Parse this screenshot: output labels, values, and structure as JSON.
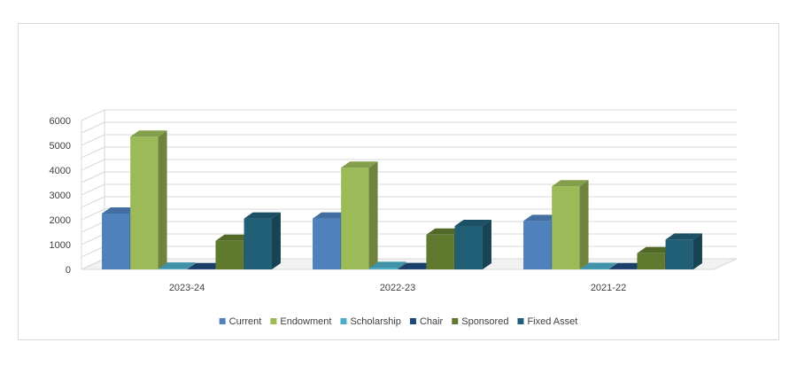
{
  "chart_data": {
    "type": "bar",
    "style": "3d-clustered-column",
    "categories": [
      "2023-24",
      "2022-23",
      "2021-22"
    ],
    "series": [
      {
        "name": "Current",
        "values": [
          2250,
          2050,
          1950
        ],
        "color": "#4f81bd"
      },
      {
        "name": "Endowment",
        "values": [
          5350,
          4100,
          3350
        ],
        "color": "#9bbb59"
      },
      {
        "name": "Scholarship",
        "values": [
          30,
          60,
          20
        ],
        "color": "#4bacc6"
      },
      {
        "name": "Chair",
        "values": [
          10,
          15,
          10
        ],
        "color": "#1f497d"
      },
      {
        "name": "Sponsored",
        "values": [
          1150,
          1400,
          650
        ],
        "color": "#5f7a2e"
      },
      {
        "name": "Fixed Asset",
        "values": [
          2050,
          1750,
          1200
        ],
        "color": "#215f77"
      }
    ],
    "yticks": [
      0,
      1000,
      2000,
      3000,
      4000,
      5000,
      6000
    ],
    "ylim": [
      0,
      6000
    ],
    "grid": true,
    "legend_position": "bottom"
  }
}
